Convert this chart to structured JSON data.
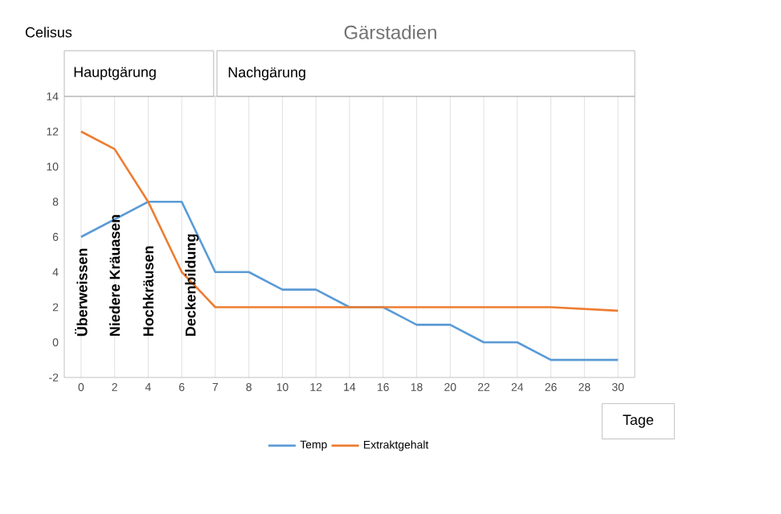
{
  "chart_data": {
    "type": "line",
    "title": "Gärstadien",
    "xlabel": "Tage",
    "ylabel": "Celisus",
    "categories": [
      "0",
      "2",
      "4",
      "6",
      "7",
      "8",
      "10",
      "12",
      "14",
      "16",
      "18",
      "20",
      "22",
      "24",
      "26",
      "28",
      "30"
    ],
    "series": [
      {
        "name": "Temp",
        "color": "#5b9bd5",
        "values": [
          6,
          7,
          8,
          8,
          4,
          4,
          3,
          3,
          2,
          2,
          1,
          1,
          0,
          0,
          -1,
          -1,
          -1
        ]
      },
      {
        "name": "Extraktgehalt",
        "color": "#ed7d31",
        "values": [
          12,
          11,
          8,
          4,
          2,
          2,
          2,
          2,
          2,
          2,
          2,
          2,
          2,
          2,
          2,
          1.9,
          1.8
        ]
      }
    ],
    "ylim": [
      -2,
      14
    ],
    "yticks": [
      -2,
      0,
      2,
      4,
      6,
      8,
      10,
      12,
      14
    ],
    "annotations": [
      "Hauptgärung",
      "Nachgärung",
      "Überweissen",
      "Niedere Kräuasen",
      "Hochkräusen",
      "Deckenbildung"
    ],
    "grid": "x",
    "legend": "bottom",
    "marker": "none",
    "line_style": "solid"
  }
}
